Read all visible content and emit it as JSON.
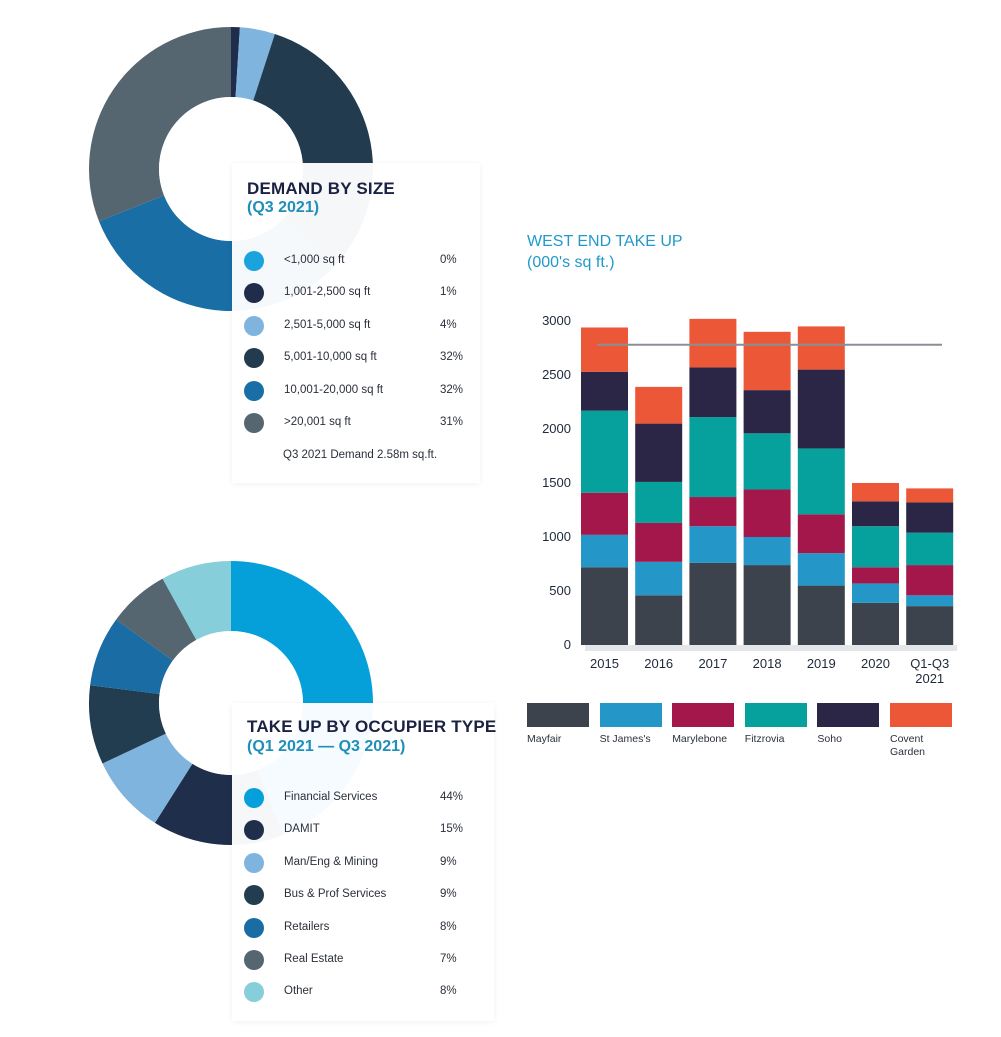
{
  "demand_by_size": {
    "title": "DEMAND BY SIZE",
    "subtitle": "(Q3 2021)",
    "note": "Q3 2021 Demand 2.58m sq.ft.",
    "items": [
      {
        "label": "<1,000 sq ft",
        "pct": "0%",
        "color": "#1aa3dc"
      },
      {
        "label": "1,001-2,500 sq ft",
        "pct": "1%",
        "color": "#1f2d4a"
      },
      {
        "label": "2,501-5,000 sq ft",
        "pct": "4%",
        "color": "#7fb4df"
      },
      {
        "label": "5,001-10,000 sq ft",
        "pct": "32%",
        "color": "#223b4f"
      },
      {
        "label": "10,001-20,000 sq ft",
        "pct": "32%",
        "color": "#186ea5"
      },
      {
        "label": ">20,001 sq ft",
        "pct": "31%",
        "color": "#556671"
      }
    ]
  },
  "take_up_by_occupier": {
    "title": "TAKE UP BY OCCUPIER TYPE",
    "subtitle": "(Q1 2021 — Q3 2021)",
    "items": [
      {
        "label": "Financial Services",
        "pct": "44%",
        "color": "#05a0da"
      },
      {
        "label": "DAMIT",
        "pct": "15%",
        "color": "#1f2f4b"
      },
      {
        "label": "Man/Eng & Mining",
        "pct": "9%",
        "color": "#7fb4df"
      },
      {
        "label": "Bus & Prof Services",
        "pct": "9%",
        "color": "#223d4f"
      },
      {
        "label": "Retailers",
        "pct": "8%",
        "color": "#1a6ca4"
      },
      {
        "label": "Real Estate",
        "pct": "7%",
        "color": "#556671"
      },
      {
        "label": "Other",
        "pct": "8%",
        "color": "#86ced9"
      }
    ]
  },
  "west_end": {
    "title_line1": "WEST END TAKE UP",
    "title_line2": "(000's sq ft.)",
    "legend": [
      {
        "label": "Mayfair",
        "color": "#3d434d"
      },
      {
        "label": "St James's",
        "color": "#2596c8"
      },
      {
        "label": "Marylebone",
        "color": "#a3174a"
      },
      {
        "label": "Fitzrovia",
        "color": "#06a19c"
      },
      {
        "label": "Soho",
        "color": "#2b2645"
      },
      {
        "label": "Covent\nGarden",
        "color": "#ec5837"
      }
    ]
  },
  "chart_data": [
    {
      "type": "pie",
      "title": "DEMAND BY SIZE",
      "subtitle": "(Q3 2021)",
      "categories": [
        "<1,000 sq ft",
        "1,001-2,500 sq ft",
        "2,501-5,000 sq ft",
        "5,001-10,000 sq ft",
        "10,001-20,000 sq ft",
        ">20,001 sq ft"
      ],
      "values": [
        0,
        1,
        4,
        32,
        32,
        31
      ]
    },
    {
      "type": "pie",
      "title": "TAKE UP BY OCCUPIER TYPE",
      "subtitle": "(Q1 2021 — Q3 2021)",
      "categories": [
        "Financial Services",
        "DAMIT",
        "Man/Eng & Mining",
        "Bus & Prof Services",
        "Retailers",
        "Real Estate",
        "Other"
      ],
      "values": [
        44,
        15,
        9,
        9,
        8,
        7,
        8
      ]
    },
    {
      "type": "bar",
      "stacked": true,
      "title": "WEST END TAKE UP",
      "subtitle": "(000's sq ft.)",
      "categories": [
        "2015",
        "2016",
        "2017",
        "2018",
        "2019",
        "2020",
        "Q1-Q3\n2021"
      ],
      "ylim": [
        0,
        3000
      ],
      "yticks": [
        0,
        500,
        1000,
        1500,
        2000,
        2500,
        3000
      ],
      "series": [
        {
          "name": "Mayfair",
          "color": "#3d434d",
          "values": [
            720,
            460,
            760,
            740,
            550,
            390,
            360
          ]
        },
        {
          "name": "St James's",
          "color": "#2596c8",
          "values": [
            300,
            310,
            340,
            260,
            300,
            180,
            100
          ]
        },
        {
          "name": "Marylebone",
          "color": "#a3174a",
          "values": [
            390,
            360,
            270,
            440,
            360,
            150,
            280
          ]
        },
        {
          "name": "Fitzrovia",
          "color": "#06a19c",
          "values": [
            760,
            380,
            740,
            520,
            610,
            380,
            300
          ]
        },
        {
          "name": "Soho",
          "color": "#2b2645",
          "values": [
            360,
            540,
            460,
            400,
            730,
            230,
            280
          ]
        },
        {
          "name": "Covent Garden",
          "color": "#ec5837",
          "values": [
            410,
            340,
            450,
            540,
            400,
            170,
            130
          ]
        }
      ],
      "reference_line": 2780,
      "grid": false,
      "legend": "bottom"
    }
  ]
}
